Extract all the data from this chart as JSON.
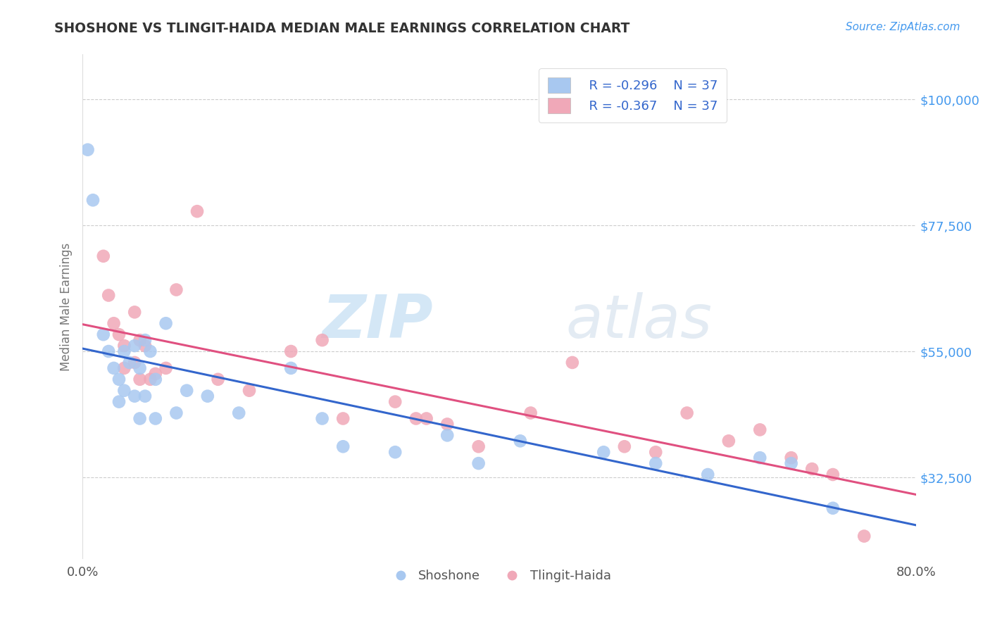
{
  "title": "SHOSHONE VS TLINGIT-HAIDA MEDIAN MALE EARNINGS CORRELATION CHART",
  "source": "Source: ZipAtlas.com",
  "ylabel": "Median Male Earnings",
  "xlabel": "",
  "xlim": [
    0.0,
    0.8
  ],
  "ylim": [
    18000,
    108000
  ],
  "xticks": [
    0.0,
    0.8
  ],
  "xticklabels": [
    "0.0%",
    "80.0%"
  ],
  "yticks": [
    32500,
    55000,
    77500,
    100000
  ],
  "yticklabels": [
    "$32,500",
    "$55,000",
    "$77,500",
    "$100,000"
  ],
  "shoshone_color": "#a8c8f0",
  "tlingit_color": "#f0a8b8",
  "shoshone_line_color": "#3366cc",
  "tlingit_line_color": "#e05080",
  "legend_R1": "R = -0.296",
  "legend_N1": "N = 37",
  "legend_R2": "R = -0.367",
  "legend_N2": "N = 37",
  "watermark_zip": "ZIP",
  "watermark_atlas": "atlas",
  "shoshone_x": [
    0.005,
    0.01,
    0.02,
    0.025,
    0.03,
    0.035,
    0.035,
    0.04,
    0.04,
    0.045,
    0.05,
    0.05,
    0.055,
    0.055,
    0.06,
    0.06,
    0.065,
    0.07,
    0.07,
    0.08,
    0.09,
    0.1,
    0.12,
    0.15,
    0.2,
    0.23,
    0.25,
    0.3,
    0.35,
    0.38,
    0.42,
    0.5,
    0.55,
    0.6,
    0.65,
    0.68,
    0.72
  ],
  "shoshone_y": [
    91000,
    82000,
    58000,
    55000,
    52000,
    50000,
    46000,
    55000,
    48000,
    53000,
    56000,
    47000,
    52000,
    43000,
    57000,
    47000,
    55000,
    50000,
    43000,
    60000,
    44000,
    48000,
    47000,
    44000,
    52000,
    43000,
    38000,
    37000,
    40000,
    35000,
    39000,
    37000,
    35000,
    33000,
    36000,
    35000,
    27000
  ],
  "tlingit_x": [
    0.02,
    0.025,
    0.03,
    0.035,
    0.04,
    0.04,
    0.05,
    0.05,
    0.055,
    0.055,
    0.06,
    0.065,
    0.07,
    0.08,
    0.09,
    0.11,
    0.13,
    0.16,
    0.2,
    0.23,
    0.25,
    0.3,
    0.32,
    0.33,
    0.35,
    0.38,
    0.43,
    0.47,
    0.52,
    0.55,
    0.58,
    0.62,
    0.65,
    0.68,
    0.7,
    0.72,
    0.75
  ],
  "tlingit_y": [
    72000,
    65000,
    60000,
    58000,
    56000,
    52000,
    62000,
    53000,
    57000,
    50000,
    56000,
    50000,
    51000,
    52000,
    66000,
    80000,
    50000,
    48000,
    55000,
    57000,
    43000,
    46000,
    43000,
    43000,
    42000,
    38000,
    44000,
    53000,
    38000,
    37000,
    44000,
    39000,
    41000,
    36000,
    34000,
    33000,
    22000
  ],
  "background_color": "#ffffff",
  "grid_color": "#cccccc",
  "title_color": "#333333",
  "axis_label_color": "#777777",
  "ytick_color": "#4499ee",
  "xtick_color": "#555555"
}
